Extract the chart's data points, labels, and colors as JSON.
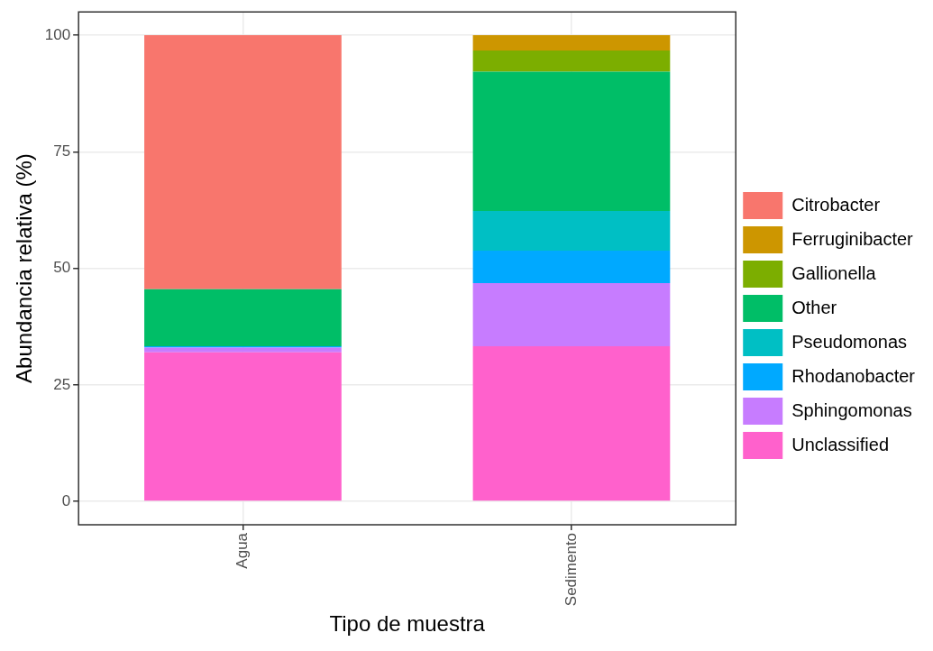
{
  "chart_data": {
    "type": "bar",
    "stacked": true,
    "xlabel": "Tipo de muestra",
    "ylabel": "Abundancia relativa (%)",
    "categories": [
      "Agua",
      "Sedimento"
    ],
    "ylim": [
      -5,
      105
    ],
    "yticks": [
      0,
      25,
      50,
      75,
      100
    ],
    "grid": true,
    "legend": "right",
    "series": [
      {
        "name": "Unclassified",
        "color": "#ff61cc",
        "values": [
          32.0,
          33.3
        ]
      },
      {
        "name": "Sphingomonas",
        "color": "#c77cff",
        "values": [
          1.0,
          13.5
        ]
      },
      {
        "name": "Rhodanobacter",
        "color": "#00a9ff",
        "values": [
          0.3,
          7.0
        ]
      },
      {
        "name": "Pseudomonas",
        "color": "#00bfc4",
        "values": [
          0,
          8.5
        ]
      },
      {
        "name": "Other",
        "color": "#00be67",
        "values": [
          12.2,
          29.9
        ]
      },
      {
        "name": "Gallionella",
        "color": "#7cae00",
        "values": [
          0,
          4.5
        ]
      },
      {
        "name": "Ferruginibacter",
        "color": "#cd9600",
        "values": [
          0,
          3.3
        ]
      },
      {
        "name": "Citrobacter",
        "color": "#f8766d",
        "values": [
          54.5,
          0
        ]
      }
    ]
  }
}
